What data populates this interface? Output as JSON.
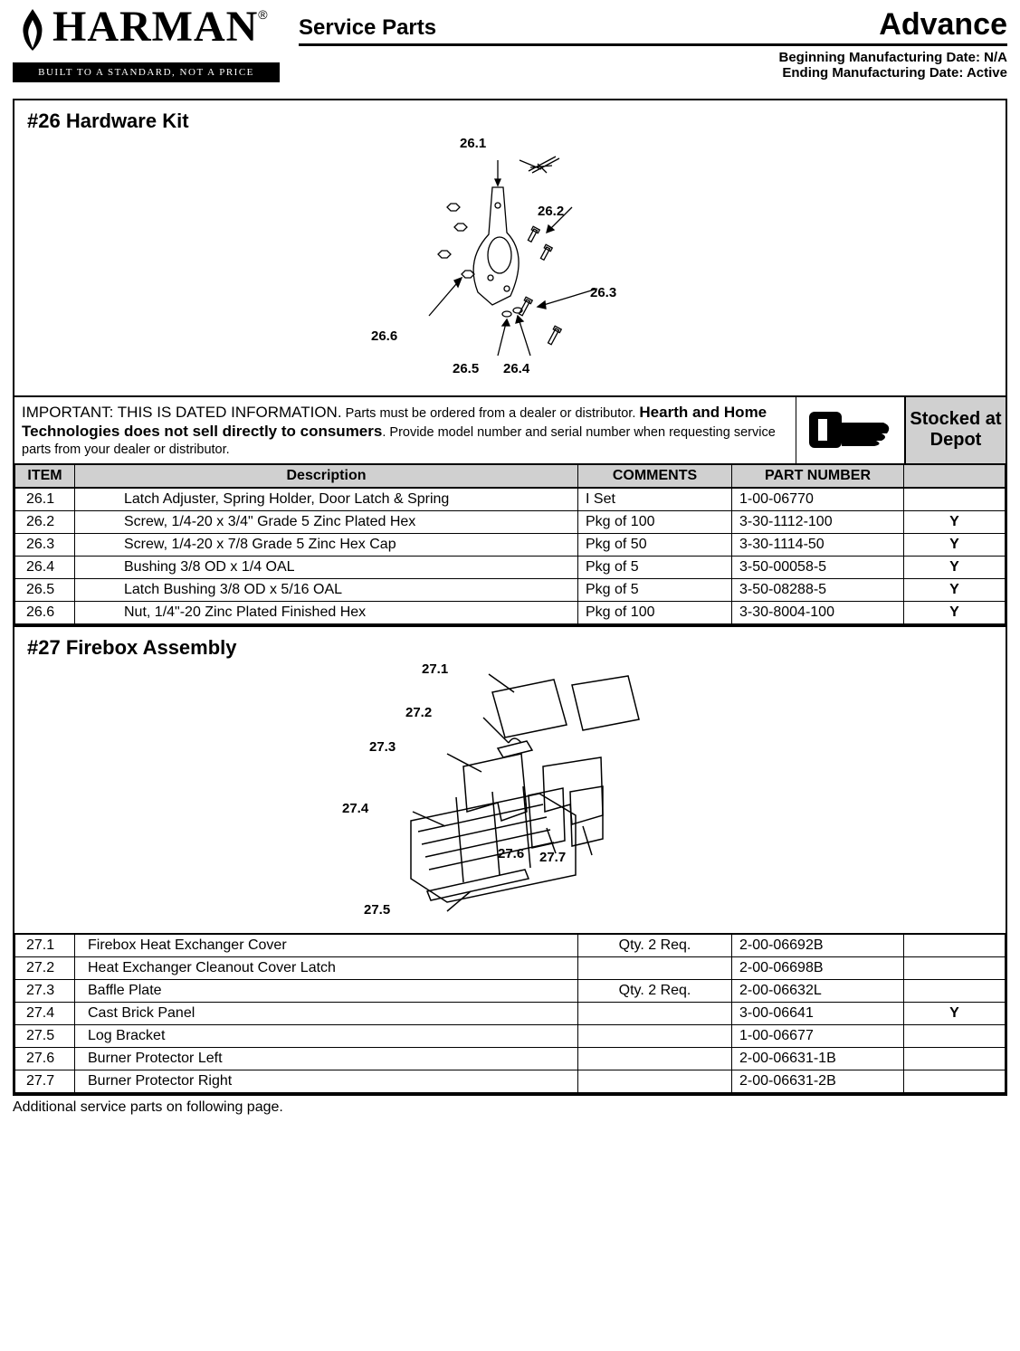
{
  "header": {
    "brand": "HARMAN",
    "reg": "®",
    "strap": "BUILT TO A STANDARD, NOT A PRICE",
    "service_parts": "Service Parts",
    "model": "Advance",
    "date1": "Beginning Manufacturing Date: N/A",
    "date2": "Ending Manufacturing Date: Active"
  },
  "kit26": {
    "title": "#26 Hardware Kit",
    "callouts": [
      "26.1",
      "26.2",
      "26.3",
      "26.4",
      "26.5",
      "26.6"
    ]
  },
  "notice": {
    "lead": "IMPORTANT: THIS IS DATED INFORMATION.",
    "body1": " Parts must be ordered from a dealer or distributor. ",
    "bold": "Hearth and Home Technologies does not sell directly to consumers",
    "body2": ". Provide model number and serial number when requesting service parts from your dealer or distributor.",
    "stocked": "Stocked at Depot"
  },
  "table26": {
    "headers": {
      "item": "ITEM",
      "desc": "Description",
      "comm": "COMMENTS",
      "part": "PART NUMBER"
    },
    "rows": [
      {
        "item": "26.1",
        "desc": "Latch Adjuster, Spring Holder, Door Latch & Spring",
        "comm": "I Set",
        "part": "1-00-06770",
        "depot": ""
      },
      {
        "item": "26.2",
        "desc": "Screw, 1/4-20 x 3/4\" Grade 5 Zinc Plated Hex",
        "comm": "Pkg of 100",
        "part": "3-30-1112-100",
        "depot": "Y"
      },
      {
        "item": "26.3",
        "desc": "Screw, 1/4-20 x 7/8 Grade 5 Zinc Hex Cap",
        "comm": "Pkg of 50",
        "part": "3-30-1114-50",
        "depot": "Y"
      },
      {
        "item": "26.4",
        "desc": "Bushing 3/8 OD x 1/4 OAL",
        "comm": "Pkg of 5",
        "part": "3-50-00058-5",
        "depot": "Y"
      },
      {
        "item": "26.5",
        "desc": "Latch Bushing 3/8 OD x 5/16 OAL",
        "comm": "Pkg of 5",
        "part": "3-50-08288-5",
        "depot": "Y"
      },
      {
        "item": "26.6",
        "desc": "Nut, 1/4\"-20 Zinc Plated Finished Hex",
        "comm": "Pkg of 100",
        "part": "3-30-8004-100",
        "depot": "Y"
      }
    ]
  },
  "kit27": {
    "title": "#27 Firebox Assembly",
    "callouts": [
      "27.1",
      "27.2",
      "27.3",
      "27.4",
      "27.5",
      "27.6",
      "27.7"
    ]
  },
  "table27": {
    "rows": [
      {
        "item": "27.1",
        "desc": "Firebox Heat Exchanger Cover",
        "comm": "Qty. 2 Req.",
        "part": "2-00-06692B",
        "depot": ""
      },
      {
        "item": "27.2",
        "desc": "Heat Exchanger Cleanout Cover Latch",
        "comm": "",
        "part": "2-00-06698B",
        "depot": ""
      },
      {
        "item": "27.3",
        "desc": "Baffle Plate",
        "comm": "Qty. 2 Req.",
        "part": "2-00-06632L",
        "depot": ""
      },
      {
        "item": "27.4",
        "desc": "Cast Brick Panel",
        "comm": "",
        "part": "3-00-06641",
        "depot": "Y"
      },
      {
        "item": "27.5",
        "desc": "Log Bracket",
        "comm": "",
        "part": "1-00-06677",
        "depot": ""
      },
      {
        "item": "27.6",
        "desc": "Burner Protector Left",
        "comm": "",
        "part": "2-00-06631-1B",
        "depot": ""
      },
      {
        "item": "27.7",
        "desc": "Burner Protector Right",
        "comm": "",
        "part": "2-00-06631-2B",
        "depot": ""
      }
    ]
  },
  "footnote": "Additional service parts on following page."
}
